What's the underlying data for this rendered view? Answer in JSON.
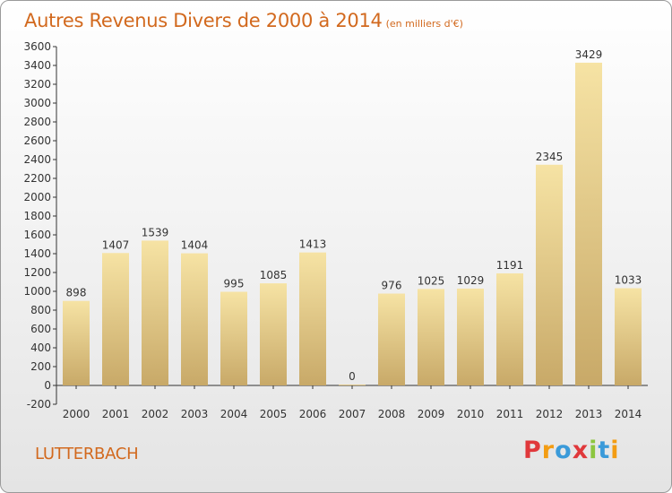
{
  "chart_data": {
    "type": "bar",
    "title": "Autres Revenus Divers de 2000 à 2014",
    "unit_label": "(en milliers d'€)",
    "categories": [
      "2000",
      "2001",
      "2002",
      "2003",
      "2004",
      "2005",
      "2006",
      "2007",
      "2008",
      "2009",
      "2010",
      "2011",
      "2012",
      "2013",
      "2014"
    ],
    "values": [
      898,
      1407,
      1539,
      1404,
      995,
      1085,
      1413,
      0,
      976,
      1025,
      1029,
      1191,
      2345,
      3429,
      1033
    ],
    "ylim": [
      -200,
      3600
    ],
    "yticks": [
      -200,
      0,
      200,
      400,
      600,
      800,
      1000,
      1200,
      1400,
      1600,
      1800,
      2000,
      2200,
      2400,
      2600,
      2800,
      3000,
      3200,
      3400,
      3600
    ],
    "grid": false,
    "bar_color": "#e6cf8a"
  },
  "footer": {
    "city": "LUTTERBACH",
    "logo_letters": [
      {
        "ch": "P",
        "color": "#e0383b"
      },
      {
        "ch": "r",
        "color": "#f39c12"
      },
      {
        "ch": "o",
        "color": "#3a9ad9"
      },
      {
        "ch": "x",
        "color": "#e0383b"
      },
      {
        "ch": "i",
        "color": "#8cc63f"
      },
      {
        "ch": "t",
        "color": "#3a9ad9"
      },
      {
        "ch": "i",
        "color": "#f39c12"
      }
    ]
  }
}
